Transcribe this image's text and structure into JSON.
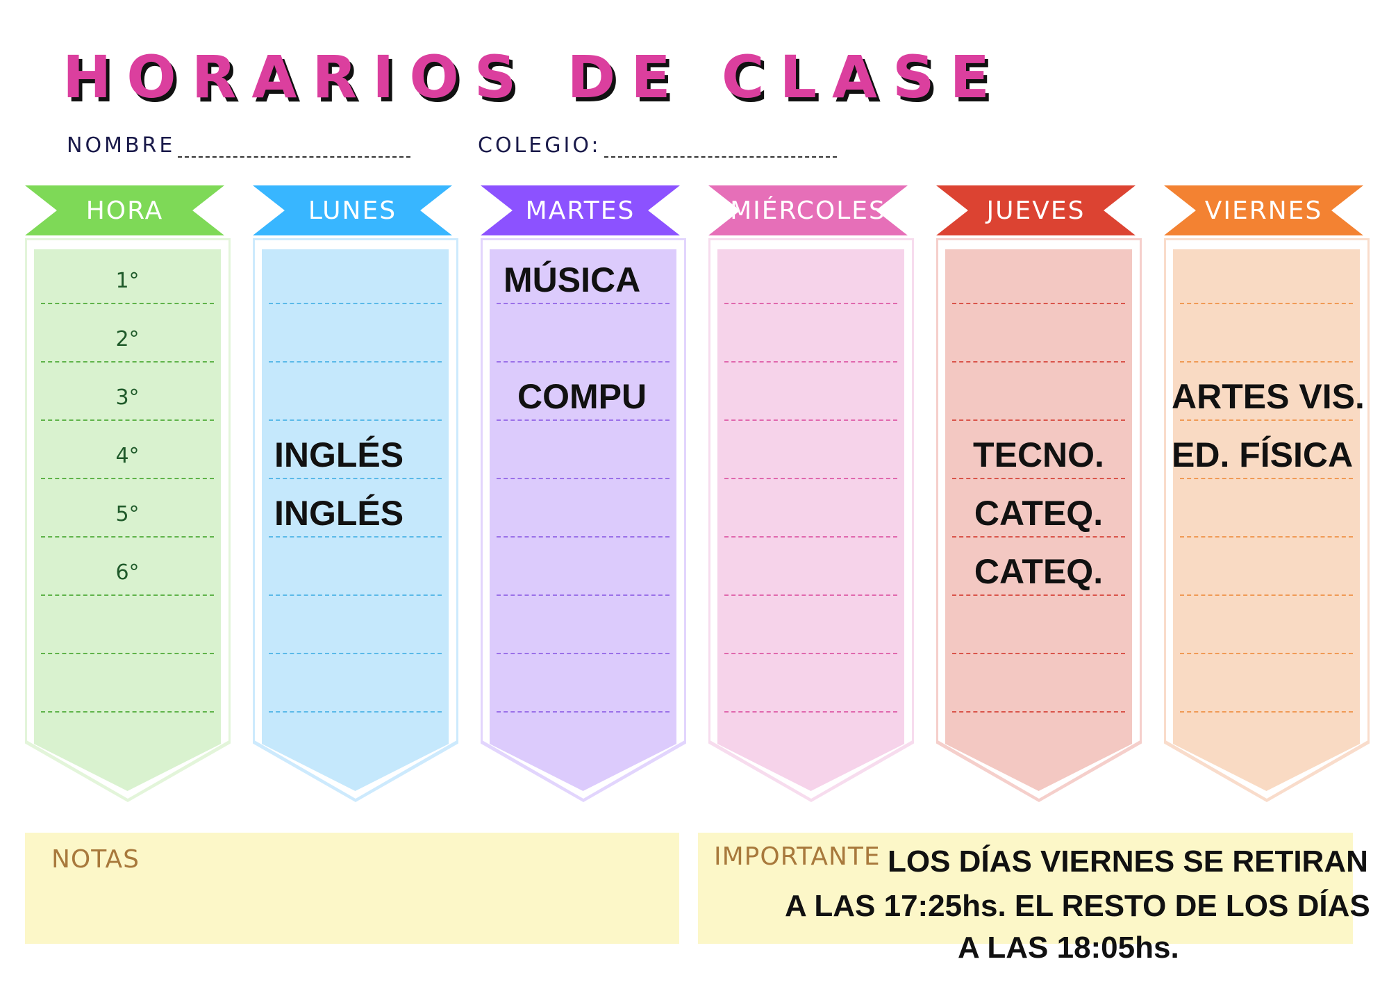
{
  "title": "HORARIOS DE CLASE",
  "fields": {
    "name_label": "NOMBRE",
    "school_label": "COLEGIO:"
  },
  "columns": [
    {
      "key": "hora",
      "label": "HORA",
      "color": "#7ed957",
      "fill": "#d9f2cf",
      "border": "#e3f5da",
      "dash": "#5fb34a",
      "entries": [
        "1°",
        "2°",
        "3°",
        "4°",
        "5°",
        "6°",
        "",
        ""
      ]
    },
    {
      "key": "lunes",
      "label": "LUNES",
      "color": "#38b6ff",
      "fill": "#c5e8fc",
      "border": "#cdeafd",
      "dash": "#5ab9e8",
      "entries": [
        "",
        "",
        "",
        "INGLÉS",
        "INGLÉS",
        "",
        "",
        ""
      ]
    },
    {
      "key": "martes",
      "label": "MARTES",
      "color": "#8c52ff",
      "fill": "#dccbfc",
      "border": "#e2d5fd",
      "dash": "#9a70e8",
      "entries": [
        "MÚSICA",
        "",
        "COMPU",
        "",
        "",
        "",
        "",
        ""
      ]
    },
    {
      "key": "miercoles",
      "label": "MIÉRCOLES",
      "color": "#e66fb8",
      "fill": "#f6d3ea",
      "border": "#f7dcee",
      "dash": "#e067ad",
      "entries": [
        "",
        "",
        "",
        "",
        "",
        "",
        "",
        ""
      ]
    },
    {
      "key": "jueves",
      "label": "JUEVES",
      "color": "#dc4332",
      "fill": "#f3c8c2",
      "border": "#f5cfcb",
      "dash": "#d9544a",
      "entries": [
        "",
        "",
        "",
        "TECNO.",
        "CATEQ.",
        "CATEQ.",
        "",
        ""
      ]
    },
    {
      "key": "viernes",
      "label": "VIERNES",
      "color": "#f38232",
      "fill": "#f9dac3",
      "border": "#f9dccb",
      "dash": "#f09a55",
      "entries": [
        "",
        "",
        "ARTES VIS.",
        "ED. FÍSICA",
        "",
        "",
        "",
        ""
      ]
    }
  ],
  "notes": {
    "label": "NOTAS"
  },
  "important": {
    "label": "IMPORTANTE",
    "lines": [
      "LOS DÍAS VIERNES SE RETIRAN",
      "A LAS 17:25hs. EL RESTO DE LOS DÍAS",
      "A LAS 18:05hs."
    ],
    "background": "#fcf7c8"
  }
}
